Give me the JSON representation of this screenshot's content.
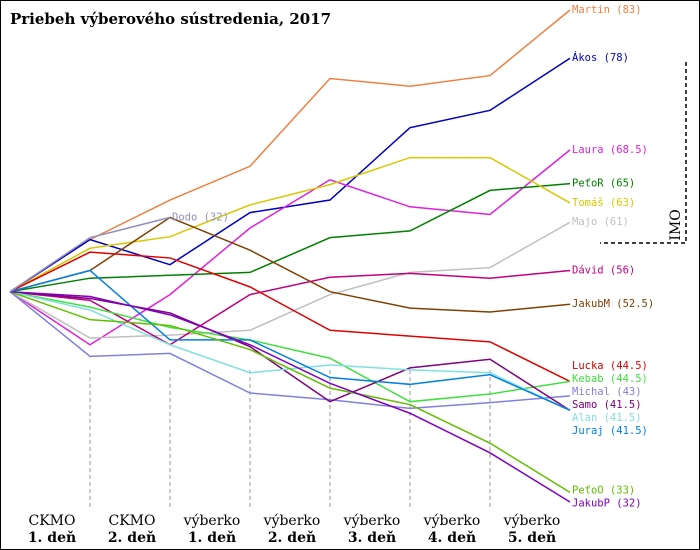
{
  "chart_data": {
    "type": "line",
    "title": "Priebeh výberového sústredenia, 2017",
    "categories": [
      null,
      [
        "CKMO",
        "1. deň"
      ],
      [
        "CKMO",
        "2. deň"
      ],
      [
        "výberko",
        "1. deň"
      ],
      [
        "výberko",
        "2. deň"
      ],
      [
        "výberko",
        "3. deň"
      ],
      [
        "výberko",
        "4. deň"
      ],
      [
        "výberko",
        "5. deň"
      ]
    ],
    "ylim": [
      30,
      85
    ],
    "annotation": "IMO",
    "series": [
      {
        "name": "Martin (83)",
        "color": "#f08040",
        "values": [
          53.8,
          59.2,
          63.3,
          66.8,
          75.9,
          75.1,
          76.2,
          83
        ]
      },
      {
        "name": "Ákos (78)",
        "color": "#0000c0",
        "values": [
          53.8,
          59.2,
          56.6,
          62.0,
          63.3,
          70.8,
          72.6,
          78
        ]
      },
      {
        "name": "Laura (68.5)",
        "color": "#e020e0",
        "values": [
          53.8,
          48.3,
          53.5,
          60.4,
          65.4,
          62.6,
          61.8,
          68.5
        ]
      },
      {
        "name": "PeťoR (65)",
        "color": "#008000",
        "values": [
          53.8,
          55.2,
          55.5,
          55.8,
          59.4,
          60.1,
          64.3,
          65
        ]
      },
      {
        "name": "Tomáš (63)",
        "color": "#d8c800",
        "values": [
          53.8,
          58.3,
          59.5,
          62.8,
          64.9,
          67.7,
          67.7,
          63
        ]
      },
      {
        "name": "Majo (61)",
        "color": "#c0c0c0",
        "values": [
          53.8,
          49.0,
          49.3,
          49.8,
          53.5,
          55.8,
          56.3,
          61
        ]
      },
      {
        "name": "Dávid (56)",
        "color": "#c00080",
        "values": [
          53.8,
          52.9,
          48.3,
          53.5,
          55.3,
          55.7,
          55.2,
          56
        ]
      },
      {
        "name": "JakubM (52.5)",
        "color": "#804000",
        "values": [
          53.8,
          56.0,
          61.5,
          58.1,
          53.8,
          52.1,
          51.7,
          52.5
        ]
      },
      {
        "name": "Lucka (44.5)",
        "color": "#e00000",
        "values": [
          53.8,
          57.9,
          57.3,
          54.3,
          49.8,
          49.2,
          48.6,
          44.5
        ]
      },
      {
        "name": "Kebab (44.5)",
        "color": "#40e040",
        "values": [
          53.8,
          52.2,
          50.1,
          48.8,
          46.9,
          42.4,
          43.2,
          44.5
        ]
      },
      {
        "name": "Michal (43)",
        "color": "#8080e0",
        "values": [
          53.8,
          47.1,
          47.4,
          43.3,
          42.6,
          41.7,
          42.3,
          43
        ]
      },
      {
        "name": "Samo (41.5)",
        "color": "#800080",
        "values": [
          53.8,
          53.1,
          51.6,
          48.1,
          42.4,
          45.9,
          46.8,
          41.5
        ]
      },
      {
        "name": "Alan (41.5)",
        "color": "#80e0e0",
        "values": [
          53.8,
          51.9,
          48.3,
          45.4,
          46.2,
          45.7,
          45.4,
          41.5
        ]
      },
      {
        "name": "Juraj (41.5)",
        "color": "#0080e0",
        "values": [
          53.8,
          56.0,
          48.8,
          48.8,
          44.9,
          44.2,
          45.2,
          41.5
        ]
      },
      {
        "name": "PeťoO (33)",
        "color": "#60c000",
        "values": [
          53.8,
          50.9,
          50.3,
          47.8,
          43.8,
          42.1,
          38.1,
          33
        ]
      },
      {
        "name": "JakubP (32)",
        "color": "#8000c0",
        "values": [
          53.8,
          53.3,
          51.4,
          48.3,
          44.3,
          41.2,
          37.1,
          32
        ]
      },
      {
        "name": "Dodo (32)",
        "color": "#9090c0",
        "values": [
          53.8,
          59.4,
          61.5,
          null,
          null,
          null,
          null,
          null
        ]
      }
    ]
  }
}
